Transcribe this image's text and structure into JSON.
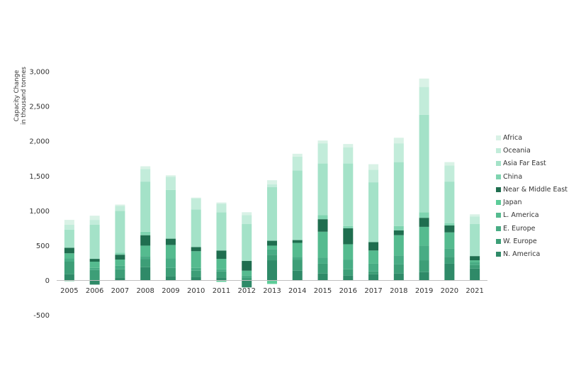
{
  "chart_data": {
    "type": "bar",
    "stacked": true,
    "ylabel_lines": [
      "Capacity Change",
      "in thousand tonnes"
    ],
    "ylim": [
      -500,
      3000
    ],
    "yticks": [
      -500,
      0,
      500,
      1000,
      1500,
      2000,
      2500,
      3000
    ],
    "ytick_labels": [
      "-500",
      "0",
      "500",
      "1,000",
      "1,500",
      "2,000",
      "2,500",
      "3,000"
    ],
    "categories": [
      "2005",
      "2006",
      "2007",
      "2008",
      "2009",
      "2010",
      "2011",
      "2012",
      "2013",
      "2014",
      "2015",
      "2016",
      "2017",
      "2018",
      "2019",
      "2020",
      "2021"
    ],
    "legend_position": "right",
    "grid": false,
    "series": [
      {
        "name": "N. America",
        "color": "#2f8a68",
        "values": [
          90,
          -60,
          40,
          190,
          60,
          50,
          40,
          -100,
          290,
          140,
          100,
          70,
          90,
          100,
          120,
          240,
          170
        ]
      },
      {
        "name": "W. Europe",
        "color": "#3d9e77",
        "values": [
          180,
          150,
          120,
          120,
          120,
          90,
          90,
          40,
          80,
          160,
          140,
          90,
          40,
          130,
          170,
          100,
          50
        ]
      },
      {
        "name": "E. Europe",
        "color": "#48ac84",
        "values": [
          50,
          30,
          50,
          40,
          140,
          40,
          30,
          30,
          80,
          40,
          90,
          140,
          110,
          130,
          210,
          120,
          40
        ]
      },
      {
        "name": "L. America",
        "color": "#55bb8f",
        "values": [
          70,
          90,
          90,
          150,
          190,
          240,
          150,
          70,
          50,
          200,
          370,
          220,
          190,
          290,
          270,
          230,
          30
        ]
      },
      {
        "name": "Japan",
        "color": "#5ccc98",
        "values": [
          -10,
          0,
          0,
          0,
          0,
          0,
          -20,
          0,
          -50,
          0,
          0,
          0,
          0,
          0,
          0,
          0,
          0
        ]
      },
      {
        "name": "Near & Middle East",
        "color": "#1f6e4f",
        "values": [
          80,
          40,
          70,
          150,
          90,
          60,
          120,
          140,
          70,
          40,
          180,
          230,
          120,
          70,
          130,
          100,
          60
        ]
      },
      {
        "name": "China",
        "color": "#7fd4b0",
        "values": [
          0,
          0,
          30,
          50,
          0,
          0,
          0,
          0,
          0,
          0,
          60,
          30,
          0,
          60,
          80,
          30,
          0
        ]
      },
      {
        "name": "Asia Far East",
        "color": "#a4e2c8",
        "values": [
          260,
          490,
          600,
          720,
          700,
          540,
          550,
          530,
          770,
          1000,
          740,
          900,
          860,
          920,
          1400,
          600,
          460
        ]
      },
      {
        "name": "Oceania",
        "color": "#c2ecda",
        "values": [
          70,
          70,
          70,
          180,
          190,
          160,
          120,
          130,
          40,
          200,
          290,
          230,
          180,
          270,
          400,
          230,
          110
        ]
      },
      {
        "name": "Africa",
        "color": "#d9f2e6",
        "values": [
          70,
          60,
          20,
          40,
          20,
          10,
          20,
          40,
          60,
          40,
          40,
          50,
          80,
          80,
          120,
          50,
          30
        ]
      }
    ]
  }
}
